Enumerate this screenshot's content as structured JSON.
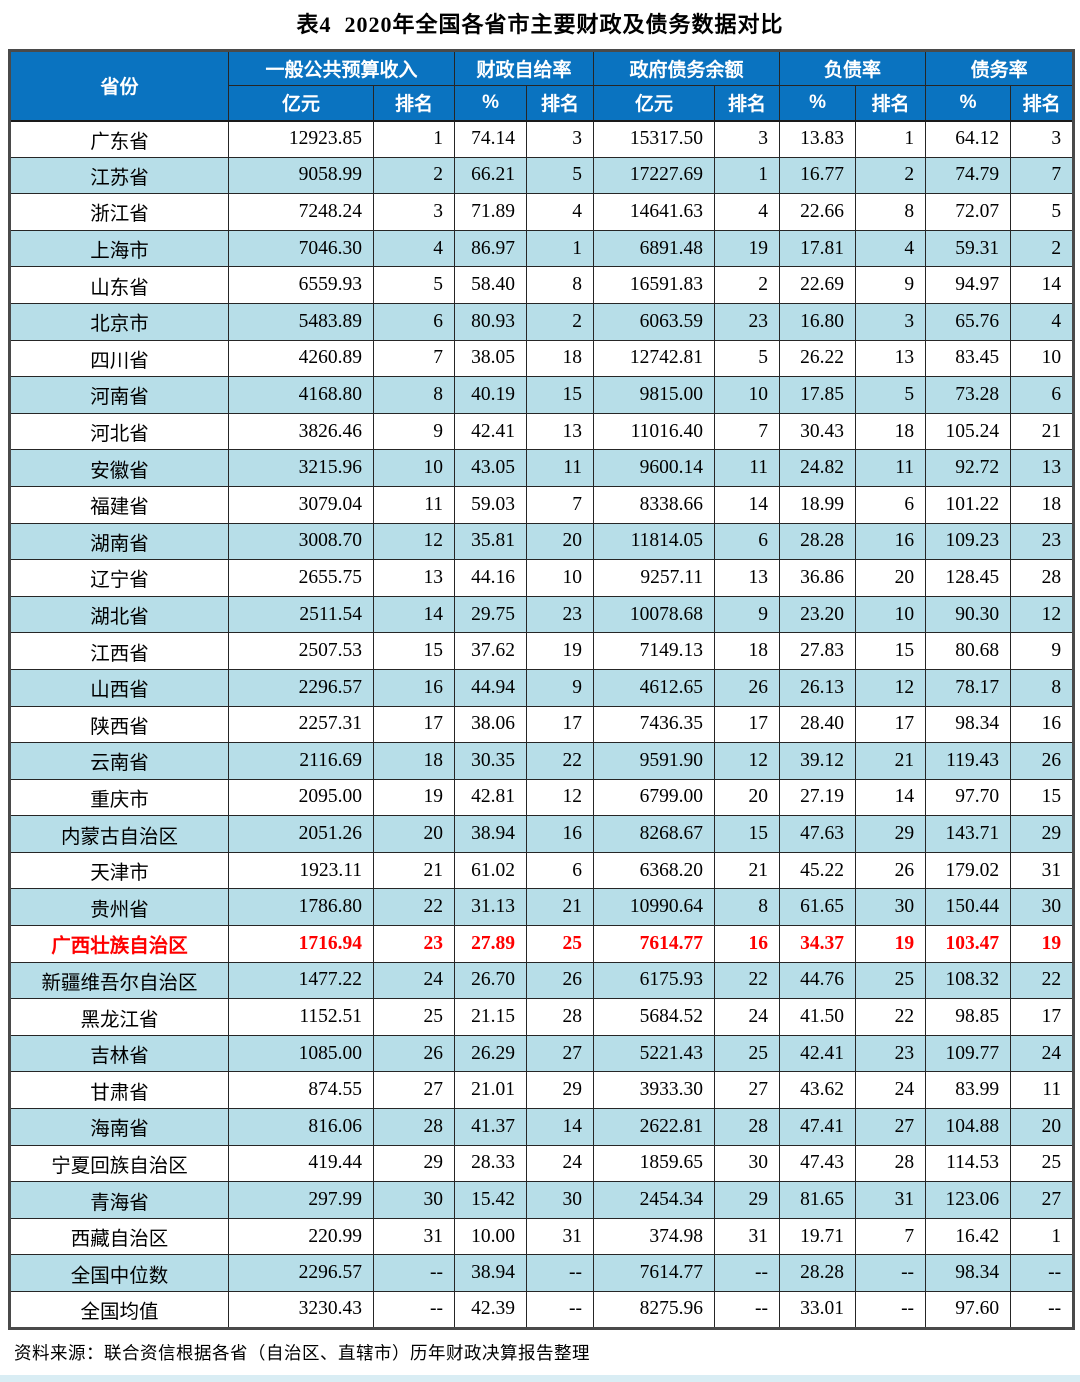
{
  "title": "表4  2020年全国各省市主要财政及债务数据对比",
  "source_note": "资料来源：联合资信根据各省（自治区、直辖市）历年财政决算报告整理",
  "colors": {
    "header_bg": "#0a73c0",
    "stripe_bg": "#b7dee8",
    "highlight_text": "#fe0000"
  },
  "table": {
    "header": {
      "province": "省份",
      "groups": [
        {
          "label": "一般公共预算收入",
          "sub": [
            "亿元",
            "排名"
          ]
        },
        {
          "label": "财政自给率",
          "sub": [
            "%",
            "排名"
          ]
        },
        {
          "label": "政府债务余额",
          "sub": [
            "亿元",
            "排名"
          ]
        },
        {
          "label": "负债率",
          "sub": [
            "%",
            "排名"
          ]
        },
        {
          "label": "债务率",
          "sub": [
            "%",
            "排名"
          ]
        }
      ]
    },
    "rows": [
      {
        "cells": [
          "广东省",
          "12923.85",
          "1",
          "74.14",
          "3",
          "15317.50",
          "3",
          "13.83",
          "1",
          "64.12",
          "3"
        ]
      },
      {
        "cells": [
          "江苏省",
          "9058.99",
          "2",
          "66.21",
          "5",
          "17227.69",
          "1",
          "16.77",
          "2",
          "74.79",
          "7"
        ]
      },
      {
        "cells": [
          "浙江省",
          "7248.24",
          "3",
          "71.89",
          "4",
          "14641.63",
          "4",
          "22.66",
          "8",
          "72.07",
          "5"
        ]
      },
      {
        "cells": [
          "上海市",
          "7046.30",
          "4",
          "86.97",
          "1",
          "6891.48",
          "19",
          "17.81",
          "4",
          "59.31",
          "2"
        ]
      },
      {
        "cells": [
          "山东省",
          "6559.93",
          "5",
          "58.40",
          "8",
          "16591.83",
          "2",
          "22.69",
          "9",
          "94.97",
          "14"
        ]
      },
      {
        "cells": [
          "北京市",
          "5483.89",
          "6",
          "80.93",
          "2",
          "6063.59",
          "23",
          "16.80",
          "3",
          "65.76",
          "4"
        ]
      },
      {
        "cells": [
          "四川省",
          "4260.89",
          "7",
          "38.05",
          "18",
          "12742.81",
          "5",
          "26.22",
          "13",
          "83.45",
          "10"
        ]
      },
      {
        "cells": [
          "河南省",
          "4168.80",
          "8",
          "40.19",
          "15",
          "9815.00",
          "10",
          "17.85",
          "5",
          "73.28",
          "6"
        ]
      },
      {
        "cells": [
          "河北省",
          "3826.46",
          "9",
          "42.41",
          "13",
          "11016.40",
          "7",
          "30.43",
          "18",
          "105.24",
          "21"
        ]
      },
      {
        "cells": [
          "安徽省",
          "3215.96",
          "10",
          "43.05",
          "11",
          "9600.14",
          "11",
          "24.82",
          "11",
          "92.72",
          "13"
        ]
      },
      {
        "cells": [
          "福建省",
          "3079.04",
          "11",
          "59.03",
          "7",
          "8338.66",
          "14",
          "18.99",
          "6",
          "101.22",
          "18"
        ]
      },
      {
        "cells": [
          "湖南省",
          "3008.70",
          "12",
          "35.81",
          "20",
          "11814.05",
          "6",
          "28.28",
          "16",
          "109.23",
          "23"
        ]
      },
      {
        "cells": [
          "辽宁省",
          "2655.75",
          "13",
          "44.16",
          "10",
          "9257.11",
          "13",
          "36.86",
          "20",
          "128.45",
          "28"
        ]
      },
      {
        "cells": [
          "湖北省",
          "2511.54",
          "14",
          "29.75",
          "23",
          "10078.68",
          "9",
          "23.20",
          "10",
          "90.30",
          "12"
        ]
      },
      {
        "cells": [
          "江西省",
          "2507.53",
          "15",
          "37.62",
          "19",
          "7149.13",
          "18",
          "27.83",
          "15",
          "80.68",
          "9"
        ]
      },
      {
        "cells": [
          "山西省",
          "2296.57",
          "16",
          "44.94",
          "9",
          "4612.65",
          "26",
          "26.13",
          "12",
          "78.17",
          "8"
        ]
      },
      {
        "cells": [
          "陕西省",
          "2257.31",
          "17",
          "38.06",
          "17",
          "7436.35",
          "17",
          "28.40",
          "17",
          "98.34",
          "16"
        ]
      },
      {
        "cells": [
          "云南省",
          "2116.69",
          "18",
          "30.35",
          "22",
          "9591.90",
          "12",
          "39.12",
          "21",
          "119.43",
          "26"
        ]
      },
      {
        "cells": [
          "重庆市",
          "2095.00",
          "19",
          "42.81",
          "12",
          "6799.00",
          "20",
          "27.19",
          "14",
          "97.70",
          "15"
        ]
      },
      {
        "cells": [
          "内蒙古自治区",
          "2051.26",
          "20",
          "38.94",
          "16",
          "8268.67",
          "15",
          "47.63",
          "29",
          "143.71",
          "29"
        ]
      },
      {
        "cells": [
          "天津市",
          "1923.11",
          "21",
          "61.02",
          "6",
          "6368.20",
          "21",
          "45.22",
          "26",
          "179.02",
          "31"
        ]
      },
      {
        "cells": [
          "贵州省",
          "1786.80",
          "22",
          "31.13",
          "21",
          "10990.64",
          "8",
          "61.65",
          "30",
          "150.44",
          "30"
        ]
      },
      {
        "cells": [
          "广西壮族自治区",
          "1716.94",
          "23",
          "27.89",
          "25",
          "7614.77",
          "16",
          "34.37",
          "19",
          "103.47",
          "19"
        ],
        "highlight": true
      },
      {
        "cells": [
          "新疆维吾尔自治区",
          "1477.22",
          "24",
          "26.70",
          "26",
          "6175.93",
          "22",
          "44.76",
          "25",
          "108.32",
          "22"
        ]
      },
      {
        "cells": [
          "黑龙江省",
          "1152.51",
          "25",
          "21.15",
          "28",
          "5684.52",
          "24",
          "41.50",
          "22",
          "98.85",
          "17"
        ]
      },
      {
        "cells": [
          "吉林省",
          "1085.00",
          "26",
          "26.29",
          "27",
          "5221.43",
          "25",
          "42.41",
          "23",
          "109.77",
          "24"
        ]
      },
      {
        "cells": [
          "甘肃省",
          "874.55",
          "27",
          "21.01",
          "29",
          "3933.30",
          "27",
          "43.62",
          "24",
          "83.99",
          "11"
        ]
      },
      {
        "cells": [
          "海南省",
          "816.06",
          "28",
          "41.37",
          "14",
          "2622.81",
          "28",
          "47.41",
          "27",
          "104.88",
          "20"
        ]
      },
      {
        "cells": [
          "宁夏回族自治区",
          "419.44",
          "29",
          "28.33",
          "24",
          "1859.65",
          "30",
          "47.43",
          "28",
          "114.53",
          "25"
        ]
      },
      {
        "cells": [
          "青海省",
          "297.99",
          "30",
          "15.42",
          "30",
          "2454.34",
          "29",
          "81.65",
          "31",
          "123.06",
          "27"
        ]
      },
      {
        "cells": [
          "西藏自治区",
          "220.99",
          "31",
          "10.00",
          "31",
          "374.98",
          "31",
          "19.71",
          "7",
          "16.42",
          "1"
        ]
      },
      {
        "cells": [
          "全国中位数",
          "2296.57",
          "--",
          "38.94",
          "--",
          "7614.77",
          "--",
          "28.28",
          "--",
          "98.34",
          "--"
        ]
      },
      {
        "cells": [
          "全国均值",
          "3230.43",
          "--",
          "42.39",
          "--",
          "8275.96",
          "--",
          "33.01",
          "--",
          "97.60",
          "--"
        ]
      }
    ]
  }
}
